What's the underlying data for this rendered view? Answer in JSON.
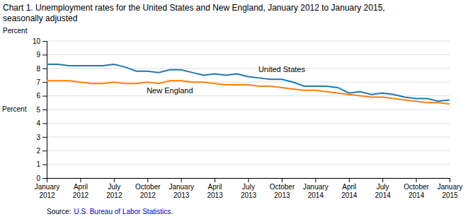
{
  "chart_data": {
    "type": "line",
    "title": "Chart 1. Unemployment rates for the United States and New England, January 2012 to January 2015,\nseasonally adjusted",
    "y_label": "Percent",
    "source": {
      "text": "Source:",
      "link": {
        "text": "U.S. Bureau of Labor Statistics.",
        "color": "#0000CC"
      }
    },
    "categories": [
      "January\n2012",
      null,
      null,
      "April\n2012",
      null,
      null,
      "July\n2012",
      null,
      null,
      "October\n2012",
      null,
      null,
      "January\n2013",
      null,
      null,
      "April\n2013",
      null,
      null,
      "July\n2013",
      null,
      null,
      "October\n2013",
      null,
      null,
      "January\n2014",
      null,
      null,
      "April\n2014",
      null,
      null,
      "July\n2014",
      null,
      null,
      "October\n2014",
      null,
      null,
      "January\n2015"
    ],
    "series": [
      {
        "name": "United States",
        "values": [
          8.3,
          8.3,
          8.2,
          8.2,
          8.2,
          8.2,
          8.3,
          8.1,
          7.8,
          7.8,
          7.7,
          7.9,
          7.9,
          7.7,
          7.5,
          7.6,
          7.5,
          7.6,
          7.4,
          7.3,
          7.2,
          7.2,
          7.0,
          6.7,
          6.7,
          6.7,
          6.6,
          6.2,
          6.3,
          6.1,
          6.2,
          6.1,
          5.9,
          5.8,
          5.8,
          5.6,
          5.7
        ]
      },
      {
        "name": "New England",
        "values": [
          7.1,
          7.1,
          7.1,
          7.0,
          6.9,
          6.9,
          7.0,
          6.9,
          6.9,
          7.0,
          6.9,
          7.1,
          7.1,
          7.0,
          7.0,
          6.9,
          6.8,
          6.8,
          6.8,
          6.7,
          6.7,
          6.6,
          6.5,
          6.4,
          6.4,
          6.3,
          6.2,
          6.1,
          6.0,
          5.9,
          5.9,
          5.8,
          5.7,
          5.6,
          5.5,
          5.5,
          5.4
        ]
      }
    ],
    "ylim": [
      0,
      10
    ],
    "yticks": [
      0,
      1,
      2,
      3,
      4,
      5,
      6,
      7,
      8,
      9,
      10
    ],
    "grid": true
  }
}
